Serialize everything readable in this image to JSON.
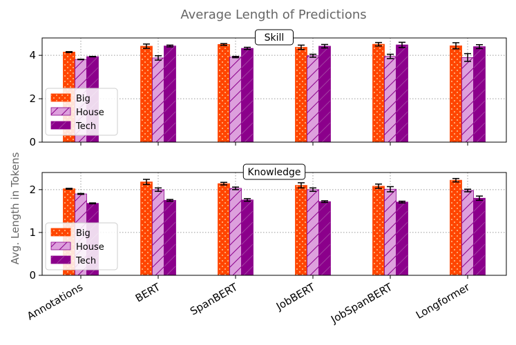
{
  "chart_data": {
    "type": "bar",
    "title": "Average Length of Predictions",
    "ylabel": "Avg. Length in Tokens",
    "categories": [
      "Annotations",
      "BERT",
      "SpanBERT",
      "JobBERT",
      "JobSpanBERT",
      "Longformer"
    ],
    "legend": [
      "Big",
      "House",
      "Tech"
    ],
    "legend_position": "lower-left",
    "colors": {
      "Big": "#ff4500",
      "House": "#dda0dd",
      "Tech": "#8b008b",
      "title": "#666666"
    },
    "panels": [
      {
        "name": "Skill",
        "ylim": [
          0,
          4.8
        ],
        "yticks": [
          "0",
          "2",
          "4"
        ],
        "series": [
          {
            "name": "Big",
            "values": [
              4.15,
              4.42,
              4.5,
              4.37,
              4.51,
              4.44
            ],
            "errors": [
              0.02,
              0.1,
              0.04,
              0.1,
              0.08,
              0.14
            ]
          },
          {
            "name": "House",
            "values": [
              3.81,
              3.88,
              3.92,
              3.98,
              3.95,
              3.9
            ],
            "errors": [
              0.01,
              0.1,
              0.03,
              0.07,
              0.1,
              0.18
            ]
          },
          {
            "name": "Tech",
            "values": [
              3.94,
              4.43,
              4.32,
              4.42,
              4.48,
              4.4
            ],
            "errors": [
              0.01,
              0.04,
              0.05,
              0.08,
              0.12,
              0.09
            ]
          }
        ]
      },
      {
        "name": "Knowledge",
        "ylim": [
          0,
          2.4
        ],
        "yticks": [
          "0",
          "1",
          "2"
        ],
        "series": [
          {
            "name": "Big",
            "values": [
              2.02,
              2.18,
              2.14,
              2.1,
              2.08,
              2.22
            ],
            "errors": [
              0.01,
              0.06,
              0.03,
              0.06,
              0.05,
              0.04
            ]
          },
          {
            "name": "House",
            "values": [
              1.9,
              2.0,
              2.03,
              2.0,
              2.01,
              1.98
            ],
            "errors": [
              0.01,
              0.04,
              0.03,
              0.04,
              0.06,
              0.03
            ]
          },
          {
            "name": "Tech",
            "values": [
              1.68,
              1.75,
              1.76,
              1.72,
              1.71,
              1.8
            ],
            "errors": [
              0.01,
              0.02,
              0.03,
              0.02,
              0.02,
              0.05
            ]
          }
        ]
      }
    ]
  }
}
